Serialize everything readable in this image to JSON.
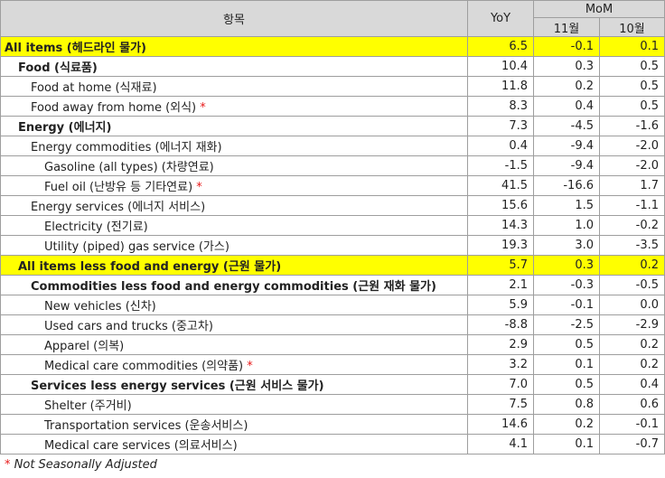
{
  "header": {
    "item": "항목",
    "yoy": "YoY",
    "mom": "MoM",
    "nov": "11월",
    "oct": "10월"
  },
  "marker": "*",
  "rows": [
    {
      "label": "All items (헤드라인 물가)",
      "yoy": "6.5",
      "nov": "-0.1",
      "oct": "0.1",
      "level": 0,
      "bold": true,
      "highlight": true,
      "nsa": false
    },
    {
      "label": "Food (식료품)",
      "yoy": "10.4",
      "nov": "0.3",
      "oct": "0.5",
      "level": 1,
      "bold": true,
      "highlight": false,
      "nsa": false
    },
    {
      "label": "Food at home (식재료)",
      "yoy": "11.8",
      "nov": "0.2",
      "oct": "0.5",
      "level": 2,
      "bold": false,
      "highlight": false,
      "nsa": false
    },
    {
      "label": "Food away from home (외식)",
      "yoy": "8.3",
      "nov": "0.4",
      "oct": "0.5",
      "level": 2,
      "bold": false,
      "highlight": false,
      "nsa": true
    },
    {
      "label": "Energy (에너지)",
      "yoy": "7.3",
      "nov": "-4.5",
      "oct": "-1.6",
      "level": 1,
      "bold": true,
      "highlight": false,
      "nsa": false
    },
    {
      "label": "Energy commodities (에너지 재화)",
      "yoy": "0.4",
      "nov": "-9.4",
      "oct": "-2.0",
      "level": 2,
      "bold": false,
      "highlight": false,
      "nsa": false
    },
    {
      "label": "Gasoline (all types) (차량연료)",
      "yoy": "-1.5",
      "nov": "-9.4",
      "oct": "-2.0",
      "level": 3,
      "bold": false,
      "highlight": false,
      "nsa": false
    },
    {
      "label": "Fuel oil (난방유 등 기타연료)",
      "yoy": "41.5",
      "nov": "-16.6",
      "oct": "1.7",
      "level": 3,
      "bold": false,
      "highlight": false,
      "nsa": true
    },
    {
      "label": "Energy services (에너지 서비스)",
      "yoy": "15.6",
      "nov": "1.5",
      "oct": "-1.1",
      "level": 2,
      "bold": false,
      "highlight": false,
      "nsa": false
    },
    {
      "label": "Electricity (전기료)",
      "yoy": "14.3",
      "nov": "1.0",
      "oct": "-0.2",
      "level": 3,
      "bold": false,
      "highlight": false,
      "nsa": false
    },
    {
      "label": "Utility (piped) gas service (가스)",
      "yoy": "19.3",
      "nov": "3.0",
      "oct": "-3.5",
      "level": 3,
      "bold": false,
      "highlight": false,
      "nsa": false
    },
    {
      "label": "All items less food and energy (근원 물가)",
      "yoy": "5.7",
      "nov": "0.3",
      "oct": "0.2",
      "level": 1,
      "bold": true,
      "highlight": true,
      "nsa": false
    },
    {
      "label": "Commodities less food and energy commodities (근원 재화 물가)",
      "yoy": "2.1",
      "nov": "-0.3",
      "oct": "-0.5",
      "level": 2,
      "bold": true,
      "highlight": false,
      "nsa": false
    },
    {
      "label": "New vehicles (신차)",
      "yoy": "5.9",
      "nov": "-0.1",
      "oct": "0.0",
      "level": 3,
      "bold": false,
      "highlight": false,
      "nsa": false
    },
    {
      "label": "Used cars and trucks (중고차)",
      "yoy": "-8.8",
      "nov": "-2.5",
      "oct": "-2.9",
      "level": 3,
      "bold": false,
      "highlight": false,
      "nsa": false
    },
    {
      "label": "Apparel (의복)",
      "yoy": "2.9",
      "nov": "0.5",
      "oct": "0.2",
      "level": 3,
      "bold": false,
      "highlight": false,
      "nsa": false
    },
    {
      "label": "Medical care commodities (의약품)",
      "yoy": "3.2",
      "nov": "0.1",
      "oct": "0.2",
      "level": 3,
      "bold": false,
      "highlight": false,
      "nsa": true
    },
    {
      "label": "Services less energy services (근원 서비스 물가)",
      "yoy": "7.0",
      "nov": "0.5",
      "oct": "0.4",
      "level": 2,
      "bold": true,
      "highlight": false,
      "nsa": false
    },
    {
      "label": "Shelter (주거비)",
      "yoy": "7.5",
      "nov": "0.8",
      "oct": "0.6",
      "level": 3,
      "bold": false,
      "highlight": false,
      "nsa": false
    },
    {
      "label": "Transportation services (운송서비스)",
      "yoy": "14.6",
      "nov": "0.2",
      "oct": "-0.1",
      "level": 3,
      "bold": false,
      "highlight": false,
      "nsa": false
    },
    {
      "label": "Medical care services (의료서비스)",
      "yoy": "4.1",
      "nov": "0.1",
      "oct": "-0.7",
      "level": 3,
      "bold": false,
      "highlight": false,
      "nsa": false
    }
  ],
  "footnote": "Not Seasonally Adjusted"
}
